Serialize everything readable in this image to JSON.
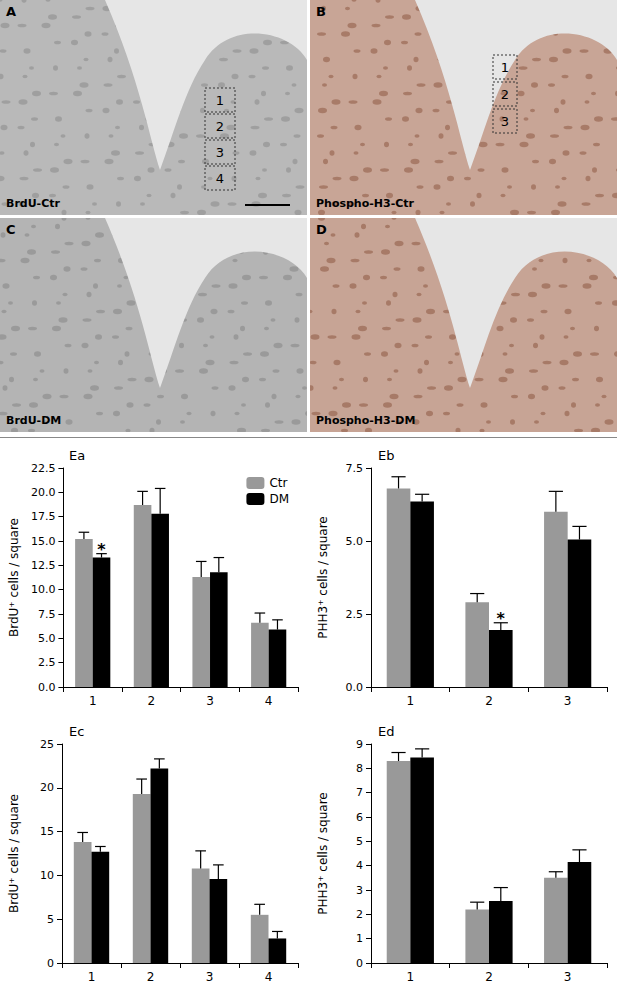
{
  "image_panels": [
    {
      "letter": "A",
      "label": "BrdU-Ctr",
      "boxes": [
        "1",
        "2",
        "3",
        "4"
      ]
    },
    {
      "letter": "B",
      "label": "Phospho-H3-Ctr",
      "boxes": [
        "1",
        "2",
        "3"
      ]
    },
    {
      "letter": "C",
      "label": "BrdU-DM"
    },
    {
      "letter": "D",
      "label": "Phospho-H3-DM"
    }
  ],
  "chart_data": [
    {
      "type": "bar",
      "title": "Ea",
      "ylabel": "BrdU⁺ cells / square",
      "categories": [
        "1",
        "2",
        "3",
        "4"
      ],
      "series": [
        {
          "name": "Ctr",
          "color": "#999999",
          "values": [
            15.2,
            18.7,
            11.3,
            6.6
          ],
          "errors": [
            0.7,
            1.4,
            1.6,
            1.0
          ]
        },
        {
          "name": "DM",
          "color": "#000000",
          "values": [
            13.3,
            17.8,
            11.8,
            5.9
          ],
          "errors": [
            0.4,
            2.6,
            1.5,
            1.0
          ]
        }
      ],
      "ylim": [
        0,
        22.5
      ],
      "yticks": [
        {
          "value": 0,
          "label": "0.0"
        },
        {
          "value": 2.5,
          "label": "2.5"
        },
        {
          "value": 5,
          "label": "5.0"
        },
        {
          "value": 7.5,
          "label": "7.5"
        },
        {
          "value": 10,
          "label": "10.0"
        },
        {
          "value": 12.5,
          "label": "12.5"
        },
        {
          "value": 15,
          "label": "15.0"
        },
        {
          "value": 17.5,
          "label": "17.5"
        },
        {
          "value": 20,
          "label": "20.0"
        },
        {
          "value": 22.5,
          "label": "22.5"
        }
      ],
      "grid": false,
      "legend": "upper right",
      "annotations": [
        {
          "text": "*",
          "series": "DM",
          "category": "1"
        }
      ]
    },
    {
      "type": "bar",
      "title": "Eb",
      "ylabel": "PHH3⁺ cells / square",
      "categories": [
        "1",
        "2",
        "3"
      ],
      "series": [
        {
          "name": "Ctr",
          "color": "#999999",
          "values": [
            6.8,
            2.9,
            6.0
          ],
          "errors": [
            0.4,
            0.3,
            0.7
          ]
        },
        {
          "name": "DM",
          "color": "#000000",
          "values": [
            6.35,
            1.95,
            5.05
          ],
          "errors": [
            0.25,
            0.25,
            0.45
          ]
        }
      ],
      "ylim": [
        0,
        7.5
      ],
      "yticks": [
        {
          "value": 0,
          "label": "0.0"
        },
        {
          "value": 2.5,
          "label": "2.5"
        },
        {
          "value": 5,
          "label": "5.0"
        },
        {
          "value": 7.5,
          "label": "7.5"
        }
      ],
      "grid": false,
      "annotations": [
        {
          "text": "*",
          "series": "DM",
          "category": "2"
        }
      ]
    },
    {
      "type": "bar",
      "title": "Ec",
      "ylabel": "BrdU⁺ cells / square",
      "categories": [
        "1",
        "2",
        "3",
        "4"
      ],
      "series": [
        {
          "name": "Ctr",
          "color": "#999999",
          "values": [
            13.8,
            19.3,
            10.8,
            5.5
          ],
          "errors": [
            1.1,
            1.7,
            2.0,
            1.2
          ]
        },
        {
          "name": "DM",
          "color": "#000000",
          "values": [
            12.7,
            22.2,
            9.6,
            2.8
          ],
          "errors": [
            0.6,
            1.1,
            1.6,
            0.8
          ]
        }
      ],
      "ylim": [
        0,
        25
      ],
      "yticks": [
        0,
        5,
        10,
        15,
        20,
        25
      ],
      "grid": false
    },
    {
      "type": "bar",
      "title": "Ed",
      "ylabel": "PHH3⁺ cells / square",
      "categories": [
        "1",
        "2",
        "3"
      ],
      "series": [
        {
          "name": "Ctr",
          "color": "#999999",
          "values": [
            8.3,
            2.2,
            3.5
          ],
          "errors": [
            0.35,
            0.3,
            0.25
          ]
        },
        {
          "name": "DM",
          "color": "#000000",
          "values": [
            8.45,
            2.55,
            4.15
          ],
          "errors": [
            0.35,
            0.55,
            0.5
          ]
        }
      ],
      "ylim": [
        0,
        9
      ],
      "yticks": [
        0,
        1,
        2,
        3,
        4,
        5,
        6,
        7,
        8,
        9
      ],
      "grid": false
    }
  ]
}
